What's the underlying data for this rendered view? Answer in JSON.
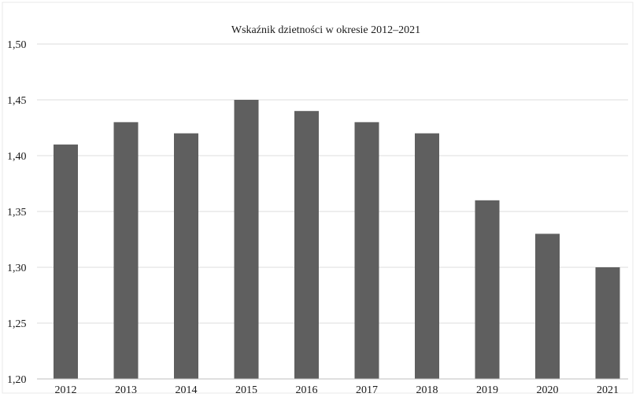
{
  "chart_data": {
    "type": "bar",
    "title": "Wskaźnik dzietności w okresie 2012–2021",
    "categories": [
      "2012",
      "2013",
      "2014",
      "2015",
      "2016",
      "2017",
      "2018",
      "2019",
      "2020",
      "2021"
    ],
    "values": [
      1.41,
      1.43,
      1.42,
      1.45,
      1.44,
      1.43,
      1.42,
      1.36,
      1.33,
      1.3
    ],
    "ylim": [
      1.2,
      1.5
    ],
    "yticks": [
      "1,20",
      "1,25",
      "1,30",
      "1,35",
      "1,40",
      "1,45",
      "1,50"
    ],
    "xlabel": "",
    "ylabel": "",
    "grid": true,
    "legend": "none",
    "colors": {
      "bar": "#5f5f5f",
      "grid": "#dcdcdc",
      "axis": "#bfbfbf",
      "frame": "#e8e8e8",
      "text": "#1a1a1a"
    }
  }
}
